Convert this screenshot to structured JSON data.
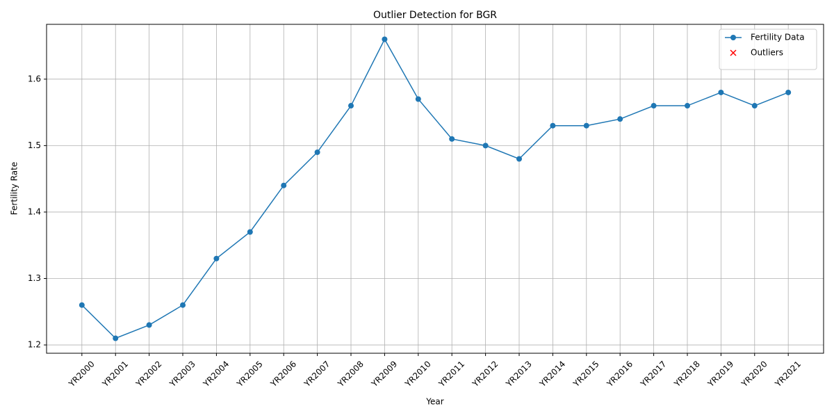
{
  "chart_data": {
    "type": "line",
    "title": "Outlier Detection for BGR",
    "xlabel": "Year",
    "ylabel": "Fertility Rate",
    "categories": [
      "YR2000",
      "YR2001",
      "YR2002",
      "YR2003",
      "YR2004",
      "YR2005",
      "YR2006",
      "YR2007",
      "YR2008",
      "YR2009",
      "YR2010",
      "YR2011",
      "YR2012",
      "YR2013",
      "YR2014",
      "YR2015",
      "YR2016",
      "YR2017",
      "YR2018",
      "YR2019",
      "YR2020",
      "YR2021"
    ],
    "series": [
      {
        "name": "Fertility Data",
        "color": "#1f77b4",
        "marker": "o",
        "values": [
          1.26,
          1.21,
          1.23,
          1.26,
          1.33,
          1.37,
          1.44,
          1.49,
          1.56,
          1.66,
          1.57,
          1.51,
          1.5,
          1.48,
          1.53,
          1.53,
          1.54,
          1.56,
          1.56,
          1.58,
          1.56,
          1.58
        ]
      },
      {
        "name": "Outliers",
        "color": "#ff0000",
        "marker": "x",
        "values": [
          null,
          null,
          null,
          null,
          null,
          null,
          null,
          null,
          null,
          null,
          null,
          null,
          null,
          null,
          null,
          null,
          null,
          null,
          null,
          null,
          null,
          null
        ]
      }
    ],
    "ylim": [
      1.1875,
      1.6825
    ],
    "yticks": [
      1.2,
      1.3,
      1.4,
      1.5,
      1.6
    ],
    "grid": true,
    "legend": "upper right"
  }
}
